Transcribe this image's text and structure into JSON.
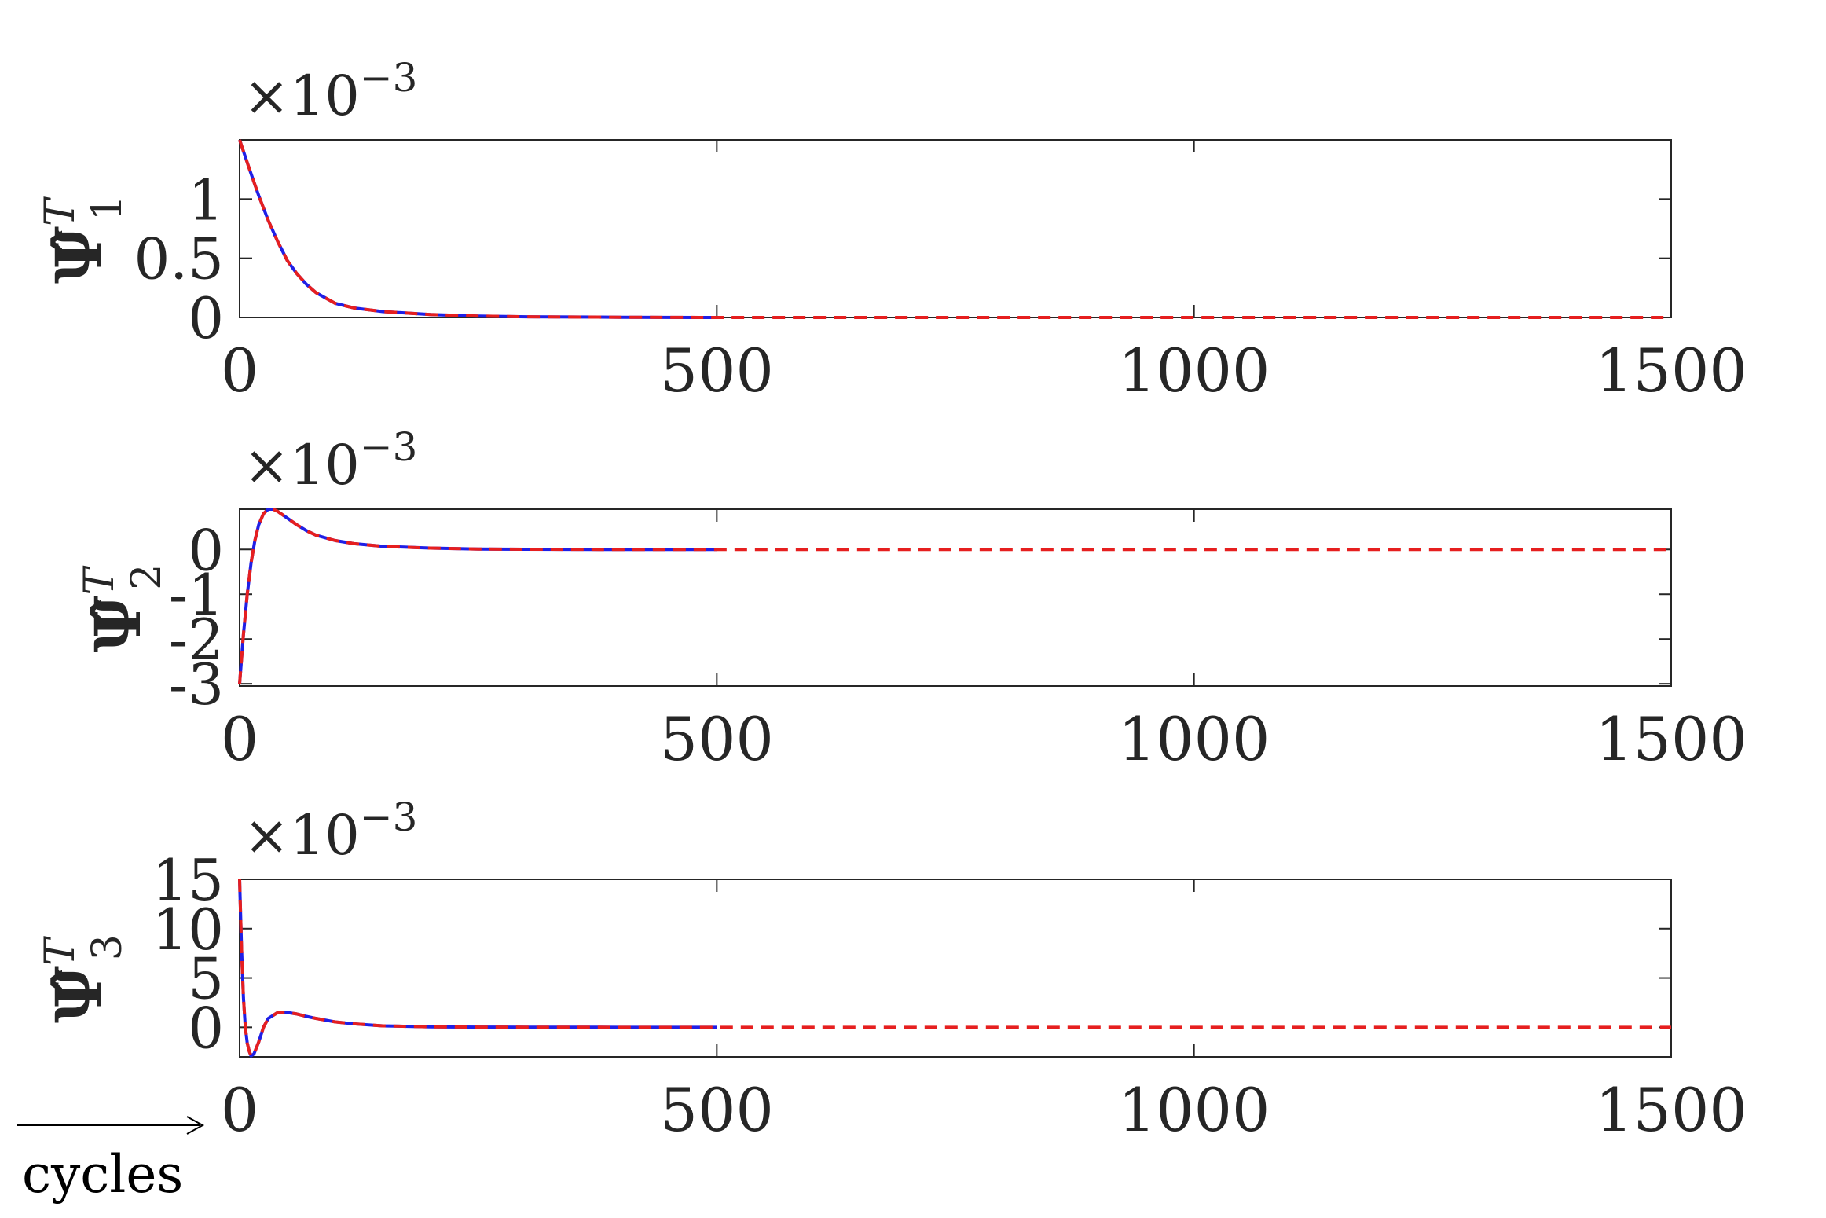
{
  "chart_data": [
    {
      "type": "line",
      "ylabel_symbol": "Ψ̂",
      "ylabel_sup": "T",
      "ylabel_sub": "1",
      "multiplier_prefix": "×10",
      "multiplier_exponent": "−3",
      "xlim": [
        0,
        1500
      ],
      "ylim": [
        0,
        1.5
      ],
      "xticks": [
        0,
        500,
        1000,
        1500
      ],
      "xtick_labels": [
        "0",
        "500",
        "1000",
        "1500"
      ],
      "yticks": [
        0,
        0.5,
        1
      ],
      "ytick_labels": [
        "0",
        "0.5",
        "1"
      ],
      "series": [
        {
          "style": "solid",
          "color": "#1f1fe6",
          "x": [
            0,
            10,
            20,
            30,
            40,
            50,
            60,
            70,
            80,
            100,
            120,
            150,
            200,
            250,
            300,
            400,
            500
          ],
          "y": [
            1.5,
            1.26,
            1.03,
            0.82,
            0.64,
            0.48,
            0.37,
            0.28,
            0.21,
            0.12,
            0.08,
            0.05,
            0.025,
            0.012,
            0.006,
            0.002,
            0.0
          ]
        },
        {
          "style": "dashed",
          "color": "#e61f1f",
          "x": [
            0,
            10,
            20,
            30,
            40,
            50,
            60,
            70,
            80,
            100,
            120,
            150,
            200,
            250,
            300,
            400,
            500,
            1500
          ],
          "y": [
            1.5,
            1.26,
            1.03,
            0.82,
            0.64,
            0.48,
            0.37,
            0.28,
            0.21,
            0.12,
            0.08,
            0.05,
            0.025,
            0.012,
            0.006,
            0.002,
            0.0,
            0.0
          ]
        }
      ]
    },
    {
      "type": "line",
      "ylabel_symbol": "Ψ̂",
      "ylabel_sup": "T",
      "ylabel_sub": "2",
      "multiplier_prefix": "×10",
      "multiplier_exponent": "−3",
      "xlim": [
        0,
        1500
      ],
      "ylim": [
        -3.05,
        0.9
      ],
      "xticks": [
        0,
        500,
        1000,
        1500
      ],
      "xtick_labels": [
        "0",
        "500",
        "1000",
        "1500"
      ],
      "yticks": [
        -3,
        -2,
        -1,
        0
      ],
      "ytick_labels": [
        "-3",
        "-2",
        "-1",
        "0"
      ],
      "series": [
        {
          "style": "solid",
          "color": "#1f1fe6",
          "x": [
            0,
            4,
            8,
            12,
            16,
            20,
            25,
            30,
            35,
            40,
            50,
            60,
            70,
            80,
            100,
            120,
            150,
            200,
            250,
            300,
            400,
            500
          ],
          "y": [
            -3.0,
            -1.9,
            -1.0,
            -0.3,
            0.2,
            0.55,
            0.8,
            0.9,
            0.9,
            0.85,
            0.7,
            0.55,
            0.42,
            0.32,
            0.2,
            0.13,
            0.07,
            0.03,
            0.01,
            0.005,
            0.0,
            0.0
          ]
        },
        {
          "style": "dashed",
          "color": "#e61f1f",
          "x": [
            0,
            4,
            8,
            12,
            16,
            20,
            25,
            30,
            35,
            40,
            50,
            60,
            70,
            80,
            100,
            120,
            150,
            200,
            250,
            300,
            400,
            500,
            1500
          ],
          "y": [
            -3.0,
            -1.9,
            -1.0,
            -0.3,
            0.2,
            0.55,
            0.8,
            0.9,
            0.9,
            0.85,
            0.7,
            0.55,
            0.42,
            0.32,
            0.2,
            0.13,
            0.07,
            0.03,
            0.01,
            0.005,
            0.0,
            0.0,
            0.0
          ]
        }
      ]
    },
    {
      "type": "line",
      "ylabel_symbol": "Ψ̂",
      "ylabel_sup": "T",
      "ylabel_sub": "3",
      "multiplier_prefix": "×10",
      "multiplier_exponent": "−3",
      "xlim": [
        0,
        1500
      ],
      "ylim": [
        -3,
        15
      ],
      "xticks": [
        0,
        500,
        1000,
        1500
      ],
      "xtick_labels": [
        "0",
        "500",
        "1000",
        "1500"
      ],
      "yticks": [
        0,
        5,
        10,
        15
      ],
      "ytick_labels": [
        "0",
        "5",
        "10",
        "15"
      ],
      "series": [
        {
          "style": "solid",
          "color": "#1f1fe6",
          "x": [
            0,
            2,
            4,
            6,
            8,
            10,
            12,
            15,
            20,
            25,
            30,
            40,
            50,
            60,
            70,
            80,
            100,
            120,
            150,
            200,
            250,
            300,
            400,
            500
          ],
          "y": [
            15,
            8,
            3,
            0,
            -1.6,
            -2.4,
            -2.9,
            -2.7,
            -1.5,
            0,
            0.9,
            1.5,
            1.5,
            1.35,
            1.1,
            0.9,
            0.55,
            0.35,
            0.15,
            0.05,
            0.02,
            0.01,
            0.0,
            0.0
          ]
        },
        {
          "style": "dashed",
          "color": "#e61f1f",
          "x": [
            0,
            2,
            4,
            6,
            8,
            10,
            12,
            15,
            20,
            25,
            30,
            40,
            50,
            60,
            70,
            80,
            100,
            120,
            150,
            200,
            250,
            300,
            400,
            500,
            1500
          ],
          "y": [
            15,
            8,
            3,
            0,
            -1.6,
            -2.4,
            -2.9,
            -2.7,
            -1.5,
            0,
            0.9,
            1.5,
            1.5,
            1.35,
            1.1,
            0.9,
            0.55,
            0.35,
            0.15,
            0.05,
            0.02,
            0.01,
            0.0,
            0.0,
            0.0
          ]
        }
      ]
    }
  ],
  "xaxis_annotation": {
    "label": "cycles",
    "arrow": "→"
  }
}
